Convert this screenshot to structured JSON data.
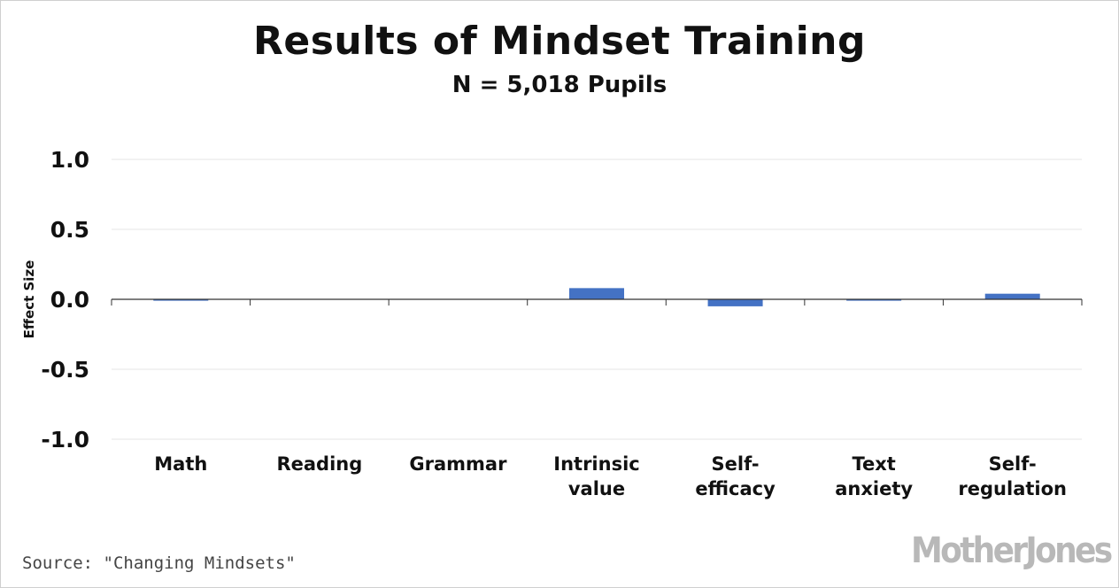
{
  "header": {
    "title": "Results of Mindset Training",
    "subtitle": "N = 5,018 Pupils"
  },
  "footer": {
    "source": "Source: \"Changing Mindsets\"",
    "logo": "MotherJones"
  },
  "colors": {
    "bar": "#4472c4",
    "grid": "#e6e6e6",
    "axis": "#333333"
  },
  "chart_data": {
    "type": "bar",
    "title": "Results of Mindset Training",
    "subtitle": "N = 5,018 Pupils",
    "xlabel": "",
    "ylabel": "Effect Size",
    "categories": [
      [
        "Math"
      ],
      [
        "Reading"
      ],
      [
        "Grammar"
      ],
      [
        "Intrinsic",
        "value"
      ],
      [
        "Self-",
        "efficacy"
      ],
      [
        "Text",
        "anxiety"
      ],
      [
        "Self-",
        "regulation"
      ]
    ],
    "values": [
      -0.01,
      0.0,
      0.0,
      0.08,
      -0.05,
      -0.01,
      0.04
    ],
    "ylim": [
      -1.0,
      1.0
    ],
    "yticks": [
      1.0,
      0.5,
      0.0,
      -0.5,
      -1.0
    ],
    "ytick_labels": [
      "1.0",
      "0.5",
      "0.0",
      "-0.5",
      "-1.0"
    ],
    "grid": true,
    "legend": "none"
  }
}
